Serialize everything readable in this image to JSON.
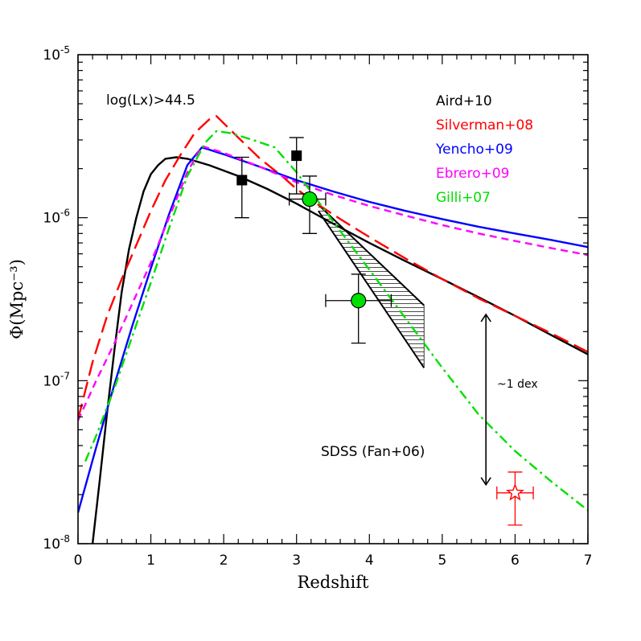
{
  "chart_data": {
    "type": "line",
    "xlabel": "Redshift",
    "ylabel": "Φ(Mpc⁻³)",
    "xlim": [
      0,
      7
    ],
    "ylim": [
      1e-08,
      1e-05
    ],
    "log_y": true,
    "grid": false,
    "legend_position": "top-right",
    "annotations": {
      "condition": "log(Lx)>44.5",
      "dex": "~1 dex",
      "sdss": "SDSS (Fan+06)"
    },
    "x_ticks": [
      "0",
      "1",
      "2",
      "3",
      "4",
      "5",
      "6",
      "7"
    ],
    "y_ticks": [
      {
        "base": "10",
        "exp": "-8"
      },
      {
        "base": "10",
        "exp": "-7"
      },
      {
        "base": "10",
        "exp": "-6"
      },
      {
        "base": "10",
        "exp": "-5"
      }
    ],
    "series": [
      {
        "name": "Aird+10",
        "color": "#000000",
        "style": "solid",
        "x": [
          0.2,
          0.3,
          0.4,
          0.5,
          0.6,
          0.7,
          0.8,
          0.9,
          1.0,
          1.1,
          1.2,
          1.35,
          1.5,
          1.8,
          2.2,
          2.6,
          3.0,
          3.5,
          4.0,
          4.5,
          5.0,
          5.5,
          6.0,
          6.5,
          7.0
        ],
        "y": [
          1e-08,
          2.5e-08,
          6.4e-08,
          1.55e-07,
          3.5e-07,
          6.4e-07,
          1e-06,
          1.45e-06,
          1.85e-06,
          2.1e-06,
          2.3e-06,
          2.35e-06,
          2.3e-06,
          2.1e-06,
          1.8e-06,
          1.5e-06,
          1.22e-06,
          9.2e-07,
          7e-07,
          5.4e-07,
          4.2e-07,
          3.25e-07,
          2.5e-07,
          1.9e-07,
          1.45e-07
        ]
      },
      {
        "name": "Silverman+08",
        "color": "#ff0000",
        "style": "longdash",
        "x": [
          0,
          0.2,
          0.4,
          0.6,
          0.8,
          1.0,
          1.2,
          1.4,
          1.6,
          1.8,
          1.9,
          2.0,
          2.2,
          2.5,
          2.8,
          3.0,
          3.3,
          3.6,
          4.0,
          4.5,
          5.0,
          5.5,
          6.0,
          6.5,
          7.0
        ],
        "y": [
          5.8e-08,
          1.3e-07,
          2.5e-07,
          4.2e-07,
          6.8e-07,
          1.1e-06,
          1.7e-06,
          2.4e-06,
          3.3e-06,
          4e-06,
          4.2e-06,
          3.8e-06,
          3.1e-06,
          2.3e-06,
          1.8e-06,
          1.5e-06,
          1.2e-06,
          9.8e-07,
          7.6e-07,
          5.6e-07,
          4.2e-07,
          3.2e-07,
          2.5e-07,
          1.95e-07,
          1.5e-07
        ]
      },
      {
        "name": "Yencho+09",
        "color": "#0000ff",
        "style": "solid",
        "x": [
          0,
          0.25,
          0.5,
          0.75,
          1.0,
          1.25,
          1.5,
          1.7,
          2.0,
          2.5,
          3.0,
          3.5,
          4.0,
          4.5,
          5.0,
          5.5,
          6.0,
          6.5,
          7.0
        ],
        "y": [
          1.55e-08,
          3.9e-08,
          9.5e-08,
          2.2e-07,
          4.9e-07,
          1.05e-06,
          2.1e-06,
          2.7e-06,
          2.45e-06,
          2.05e-06,
          1.7e-06,
          1.45e-06,
          1.25e-06,
          1.1e-06,
          9.8e-07,
          8.8e-07,
          8e-07,
          7.3e-07,
          6.6e-07
        ]
      },
      {
        "name": "Ebrero+09",
        "color": "#ff00ff",
        "style": "dash",
        "x": [
          0,
          0.25,
          0.5,
          0.75,
          1.0,
          1.25,
          1.5,
          1.7,
          2.0,
          2.5,
          3.0,
          3.5,
          4.0,
          4.5,
          5.0,
          5.5,
          6.0,
          6.5,
          7.0
        ],
        "y": [
          5.7e-08,
          1e-07,
          1.7e-07,
          3e-07,
          5.3e-07,
          1e-06,
          1.9e-06,
          2.75e-06,
          2.5e-06,
          2.05e-06,
          1.65e-06,
          1.38e-06,
          1.18e-06,
          1.03e-06,
          9e-07,
          8e-07,
          7.2e-07,
          6.5e-07,
          5.9e-07
        ]
      },
      {
        "name": "Gilli+07",
        "color": "#00e000",
        "style": "dashdot",
        "x": [
          0.1,
          0.25,
          0.5,
          0.75,
          1.0,
          1.25,
          1.5,
          1.75,
          1.9,
          2.1,
          2.4,
          2.7,
          3.0,
          3.5,
          4.0,
          4.5,
          5.0,
          5.5,
          6.0,
          6.5,
          7.0
        ],
        "y": [
          3.2e-08,
          4.6e-08,
          9e-08,
          1.9e-07,
          4e-07,
          8.6e-07,
          1.8e-06,
          2.9e-06,
          3.4e-06,
          3.3e-06,
          3e-06,
          2.7e-06,
          1.9e-06,
          9.5e-07,
          4.8e-07,
          2.4e-07,
          1.2e-07,
          6.2e-08,
          3.7e-08,
          2.4e-08,
          1.6e-08
        ]
      }
    ],
    "points_square": {
      "color": "#000000",
      "x": [
        2.25,
        3.0
      ],
      "y": [
        1.7e-06,
        2.4e-06
      ],
      "ylo": [
        1e-06,
        1.4e-06
      ],
      "yhi": [
        2.35e-06,
        3.1e-06
      ]
    },
    "points_circle": {
      "color": "#00e000",
      "x": [
        3.18,
        3.85
      ],
      "y": [
        1.3e-06,
        3.1e-07
      ],
      "xlo": [
        2.9,
        3.4
      ],
      "xhi": [
        3.4,
        4.3
      ],
      "ylo": [
        8e-07,
        1.7e-07
      ],
      "yhi": [
        1.8e-06,
        4.5e-07
      ]
    },
    "sdss_point": {
      "color": "#ff0000",
      "x": 6.0,
      "y": 2.05e-08,
      "xlo": 5.75,
      "xhi": 6.25,
      "ylo": 1.3e-08,
      "yhi": 2.75e-08
    },
    "shaded_region": {
      "upper_x": [
        3.3,
        4.75
      ],
      "upper_y": [
        1.2e-06,
        2.9e-07
      ],
      "lower_x": [
        3.3,
        4.75
      ],
      "lower_y": [
        1.1e-06,
        1.2e-07
      ]
    },
    "dex_arrow": {
      "x": 5.6,
      "y_top": 2.55e-07,
      "y_bottom": 2.3e-08
    }
  }
}
